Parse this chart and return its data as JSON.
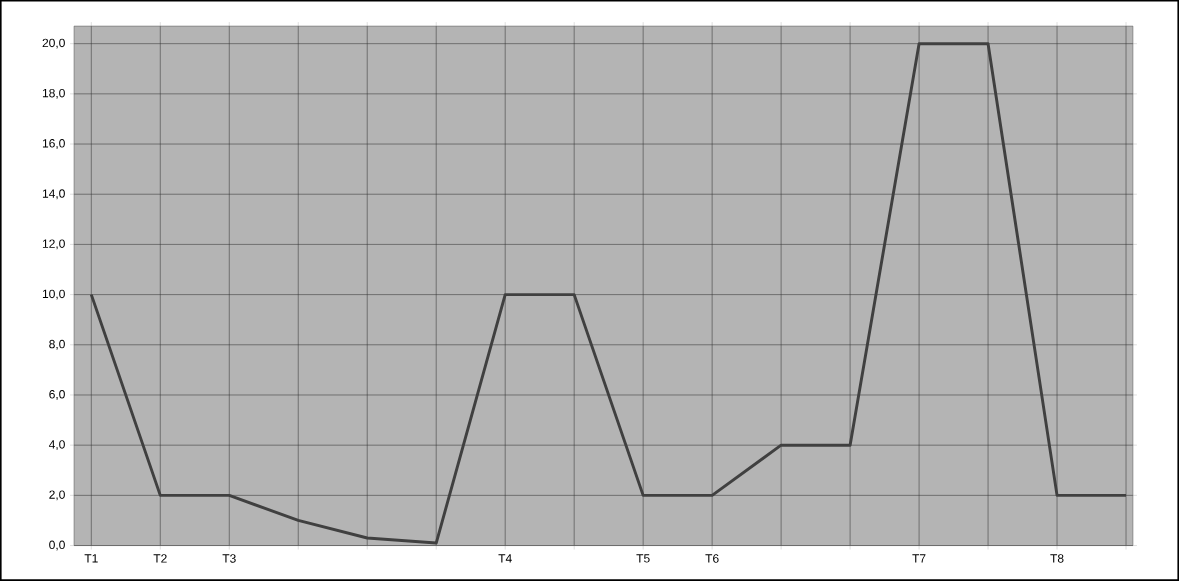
{
  "chart_data": {
    "type": "line",
    "categories": [
      "T1",
      "T2",
      "T3",
      null,
      null,
      null,
      "T4",
      null,
      "T5",
      "T6",
      null,
      null,
      "T7",
      null,
      "T8",
      null
    ],
    "series": [
      {
        "color": "#404040",
        "values": [
          10,
          2,
          2,
          1,
          0.3,
          0.1,
          10,
          10,
          2,
          2,
          4,
          4,
          20,
          20,
          2,
          2
        ]
      }
    ],
    "ylim": [
      0,
      20.7
    ],
    "yticks": [
      {
        "value": 0,
        "label": "0,0"
      },
      {
        "value": 2,
        "label": "2,0"
      },
      {
        "value": 4,
        "label": "4,0"
      },
      {
        "value": 6,
        "label": "6,0"
      },
      {
        "value": 8,
        "label": "8,0"
      },
      {
        "value": 10,
        "label": "10,0"
      },
      {
        "value": 12,
        "label": "12,0"
      },
      {
        "value": 14,
        "label": "14,0"
      },
      {
        "value": 16,
        "label": "16,0"
      },
      {
        "value": 18,
        "label": "18,0"
      },
      {
        "value": 20,
        "label": "20,0"
      }
    ],
    "grid": true,
    "marker": "none",
    "line_style": "solid"
  }
}
